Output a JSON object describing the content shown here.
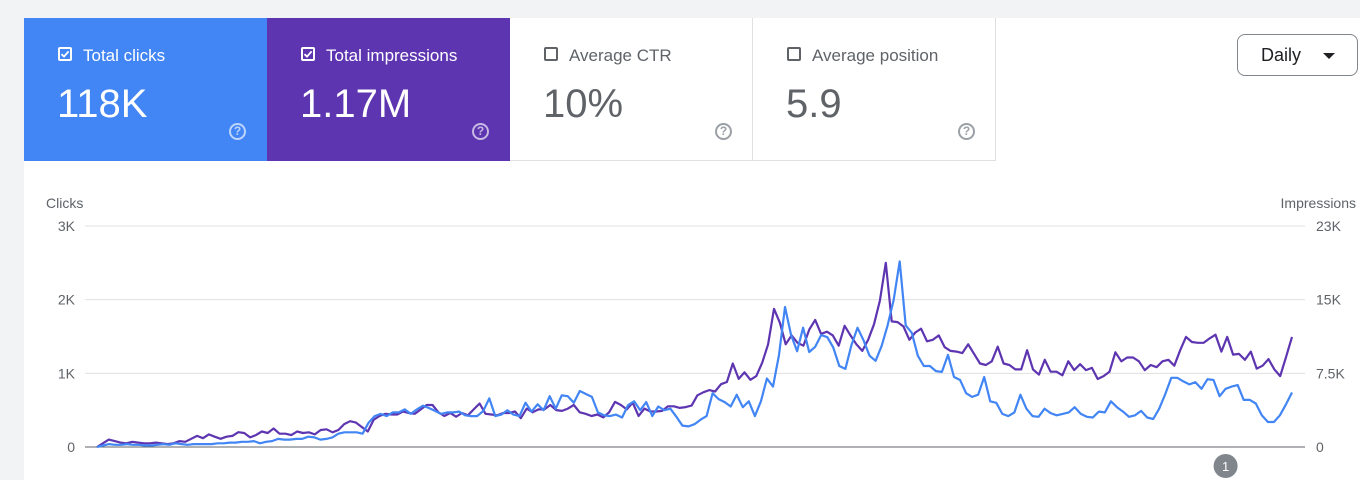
{
  "metrics": [
    {
      "label": "Total clicks",
      "value": "118K",
      "checked": true,
      "color": "#4285f4"
    },
    {
      "label": "Total impressions",
      "value": "1.17M",
      "checked": true,
      "color": "#5e35b1"
    },
    {
      "label": "Average CTR",
      "value": "10%",
      "checked": false
    },
    {
      "label": "Average position",
      "value": "5.9",
      "checked": false
    }
  ],
  "help_symbol": "?",
  "granularity": {
    "selected": "Daily",
    "icon": "caret-down-icon"
  },
  "annotation_label": "1",
  "chart_data": {
    "type": "line",
    "ylabel_left": "Clicks",
    "ylabel_right": "Impressions",
    "yticks_left": [
      "0",
      "1K",
      "2K",
      "3K"
    ],
    "yticks_right": [
      "0",
      "7.5K",
      "15K",
      "23K"
    ],
    "ylim_left": [
      0,
      3000
    ],
    "ylim_right": [
      0,
      22500
    ],
    "grid": true,
    "series": [
      {
        "name": "Clicks",
        "axis": "left",
        "color": "#4285f4",
        "values": [
          0,
          20,
          40,
          30,
          30,
          40,
          30,
          30,
          20,
          20,
          30,
          40,
          30,
          50,
          40,
          30,
          40,
          40,
          40,
          40,
          50,
          50,
          60,
          60,
          70,
          70,
          80,
          50,
          70,
          80,
          110,
          100,
          100,
          110,
          110,
          140,
          130,
          100,
          110,
          130,
          180,
          200,
          200,
          200,
          180,
          330,
          420,
          450,
          420,
          470,
          470,
          510,
          450,
          510,
          560,
          530,
          490,
          450,
          470,
          470,
          480,
          430,
          420,
          420,
          490,
          660,
          420,
          440,
          500,
          440,
          420,
          600,
          480,
          580,
          500,
          690,
          520,
          700,
          690,
          600,
          760,
          720,
          680,
          470,
          430,
          420,
          440,
          400,
          570,
          620,
          500,
          610,
          420,
          550,
          500,
          520,
          410,
          290,
          280,
          310,
          370,
          420,
          730,
          650,
          610,
          550,
          710,
          540,
          620,
          420,
          620,
          930,
          820,
          1250,
          1900,
          1520,
          1300,
          1620,
          1290,
          1360,
          1520,
          1490,
          1350,
          1100,
          1060,
          1380,
          1620,
          1450,
          1240,
          1170,
          1370,
          1650,
          2000,
          2520,
          1650,
          1550,
          1240,
          1100,
          1100,
          1030,
          1020,
          1250,
          950,
          910,
          730,
          680,
          710,
          950,
          620,
          600,
          450,
          420,
          470,
          710,
          520,
          420,
          410,
          520,
          460,
          430,
          450,
          470,
          540,
          450,
          410,
          400,
          480,
          470,
          620,
          540,
          480,
          410,
          430,
          490,
          400,
          380,
          520,
          720,
          940,
          940,
          890,
          850,
          880,
          790,
          920,
          910,
          690,
          790,
          820,
          840,
          640,
          640,
          590,
          430,
          340,
          340,
          430,
          580,
          740
        ]
      },
      {
        "name": "Impressions",
        "axis": "right",
        "color": "#5e35b1",
        "values": [
          0,
          380,
          750,
          600,
          450,
          380,
          530,
          450,
          380,
          380,
          450,
          380,
          300,
          380,
          600,
          530,
          830,
          1130,
          900,
          1280,
          1050,
          830,
          1050,
          1130,
          1510,
          1430,
          980,
          1210,
          1580,
          1430,
          1880,
          1350,
          1350,
          1210,
          1580,
          1430,
          1500,
          1280,
          1730,
          1800,
          1500,
          1730,
          2330,
          2630,
          2480,
          2030,
          1580,
          2780,
          3160,
          3380,
          3310,
          3310,
          3610,
          3460,
          3380,
          3830,
          4280,
          4280,
          3530,
          3160,
          3460,
          3080,
          3460,
          3230,
          3830,
          4430,
          3380,
          3310,
          3230,
          3460,
          3460,
          3610,
          2930,
          3910,
          3530,
          3830,
          3830,
          4280,
          3760,
          3680,
          3910,
          4280,
          3530,
          3380,
          3160,
          3310,
          3010,
          3530,
          4590,
          4280,
          3830,
          4510,
          3160,
          3910,
          3610,
          3610,
          3680,
          4140,
          4140,
          3980,
          4060,
          4210,
          5260,
          5570,
          5790,
          5650,
          6390,
          6620,
          8500,
          6930,
          7610,
          6840,
          7220,
          8580,
          10460,
          14070,
          12640,
          10460,
          11360,
          10610,
          10310,
          11960,
          12940,
          11510,
          11740,
          11360,
          10310,
          12340,
          11360,
          10460,
          9780,
          10920,
          12490,
          14910,
          18750,
          12790,
          12720,
          12270,
          10910,
          11660,
          12040,
          10760,
          10910,
          11360,
          10160,
          9780,
          9710,
          9560,
          10460,
          9480,
          8500,
          8350,
          8730,
          10220,
          8500,
          8350,
          7900,
          7900,
          9860,
          7900,
          7370,
          8880,
          7670,
          7670,
          7300,
          8730,
          7830,
          8430,
          7830,
          8050,
          6920,
          7220,
          7670,
          9640,
          8730,
          9110,
          9110,
          8730,
          7820,
          8350,
          8120,
          8730,
          8880,
          8280,
          9860,
          11210,
          10690,
          10610,
          10610,
          11060,
          11430,
          9710,
          11210,
          9410,
          9480,
          8880,
          9710,
          7980,
          8280,
          8950,
          7910,
          7220,
          9180,
          11210
        ]
      }
    ],
    "annotation_at_index": 187
  }
}
